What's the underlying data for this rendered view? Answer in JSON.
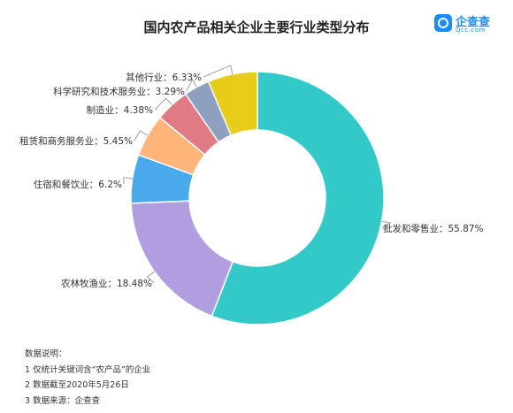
{
  "chart_data": {
    "type": "pie",
    "title": "国内农产品相关企业主要行业类型分布",
    "donut": true,
    "slices": [
      {
        "label": "批发和零售业",
        "value": 55.87,
        "display": "55.87%",
        "color": "#33c9c9"
      },
      {
        "label": "农林牧渔业",
        "value": 18.48,
        "display": "18.48%",
        "color": "#b19ee0"
      },
      {
        "label": "住宿和餐饮业",
        "value": 6.2,
        "display": "6.2%",
        "color": "#4aa9ea"
      },
      {
        "label": "租赁和商务服务业",
        "value": 5.45,
        "display": "5.45%",
        "color": "#ffb57a"
      },
      {
        "label": "制造业",
        "value": 4.38,
        "display": "4.38%",
        "color": "#e07a84"
      },
      {
        "label": "科学研究和技术服务业",
        "value": 3.29,
        "display": "3.29%",
        "color": "#8e9fbf"
      },
      {
        "label": "其他行业",
        "value": 6.33,
        "display": "6.33%",
        "color": "#e8cc1a"
      }
    ]
  },
  "logo": {
    "name": "企查查",
    "sub": "Qcc.com",
    "icon": "magnifier-logo-icon"
  },
  "notes": {
    "heading": "数据说明：",
    "items": [
      "1 仅统计关键词含“农产品”的企业",
      "2 数据截至2020年5月26日",
      "3 数据来源：企查查"
    ]
  }
}
